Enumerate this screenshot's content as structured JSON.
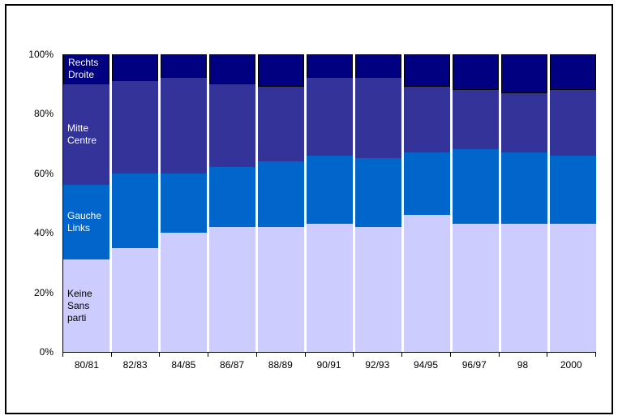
{
  "chart_data": {
    "type": "bar",
    "variant": "stacked-100-percent",
    "title": "",
    "categories": [
      "80/81",
      "82/83",
      "84/85",
      "86/87",
      "88/89",
      "90/91",
      "92/93",
      "94/95",
      "96/97",
      "98",
      "2000"
    ],
    "series": [
      {
        "name": "Keine / Sans parti",
        "label": "Keine\nSans\nparti",
        "color": "#CCCCFF",
        "label_color": "#000000",
        "values": [
          31,
          35,
          40,
          42,
          42,
          43,
          42,
          46,
          43,
          43,
          43
        ]
      },
      {
        "name": "Gauche / Links",
        "label": "Gauche\nLinks",
        "color": "#0066CC",
        "label_color": "#FFFFFF",
        "values": [
          25,
          25,
          20,
          20,
          22,
          23,
          23,
          21,
          25,
          24,
          23
        ]
      },
      {
        "name": "Mitte / Centre",
        "label": "Mitte\nCentre",
        "color": "#333399",
        "label_color": "#FFFFFF",
        "values": [
          34,
          31,
          32,
          28,
          25,
          26,
          27,
          22,
          20,
          20,
          22
        ]
      },
      {
        "name": "Rechts / Droite",
        "label": "Rechts\nDroite",
        "color": "#000080",
        "label_color": "#FFFFFF",
        "border_color": "#000000",
        "values": [
          10,
          9,
          8,
          10,
          11,
          8,
          8,
          11,
          12,
          13,
          12
        ]
      }
    ],
    "y_axis": {
      "ticks": [
        "0%",
        "20%",
        "40%",
        "60%",
        "80%",
        "100%"
      ],
      "min": 0,
      "max": 100
    },
    "x_axis": {
      "tick_marks": true
    },
    "grid": false,
    "legend": "labels-inside-first-bar",
    "background": "#FFFFFF",
    "axis_color": "#000000"
  }
}
